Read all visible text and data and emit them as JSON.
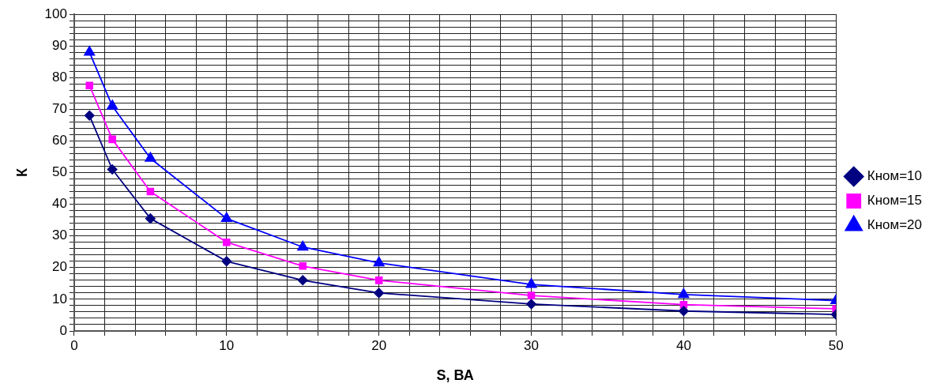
{
  "chart_data": {
    "type": "line",
    "xlabel": "S, ВА",
    "ylabel": "К",
    "x": [
      1,
      2.5,
      5,
      10,
      15,
      20,
      30,
      40,
      50
    ],
    "series": [
      {
        "name": "Кном=10",
        "color": "#000080",
        "marker": "diamond",
        "values": [
          68,
          51,
          35.5,
          22,
          16,
          12,
          8.5,
          6.3,
          5.2
        ]
      },
      {
        "name": "Кном=15",
        "color": "#ff00ff",
        "marker": "square",
        "values": [
          77.5,
          60.5,
          44,
          28,
          20.5,
          16,
          11.2,
          8.3,
          7
        ]
      },
      {
        "name": "Кном=20",
        "color": "#0000ff",
        "marker": "triangle",
        "values": [
          88,
          71,
          54.5,
          35.5,
          26.5,
          21.5,
          14.7,
          11.5,
          9.6
        ]
      }
    ],
    "xlim": [
      0,
      50
    ],
    "ylim": [
      0,
      100
    ],
    "xticks": [
      0,
      {
        "value": 2,
        "label": null
      },
      {
        "value": 4,
        "label": null
      },
      {
        "value": 6,
        "label": null
      },
      {
        "value": 8,
        "label": null
      },
      10,
      {
        "value": 12,
        "label": null
      },
      {
        "value": 14,
        "label": null
      },
      {
        "value": 16,
        "label": null
      },
      {
        "value": 18,
        "label": null
      },
      20,
      {
        "value": 22,
        "label": null
      },
      {
        "value": 24,
        "label": null
      },
      {
        "value": 26,
        "label": null
      },
      {
        "value": 28,
        "label": null
      },
      30,
      {
        "value": 32,
        "label": null
      },
      {
        "value": 34,
        "label": null
      },
      {
        "value": 36,
        "label": null
      },
      {
        "value": 38,
        "label": null
      },
      40,
      {
        "value": 42,
        "label": null
      },
      {
        "value": 44,
        "label": null
      },
      {
        "value": 46,
        "label": null
      },
      {
        "value": 48,
        "label": null
      },
      50
    ],
    "yticks": [
      0,
      {
        "value": 2,
        "label": null
      },
      {
        "value": 4,
        "label": null
      },
      {
        "value": 6,
        "label": null
      },
      {
        "value": 8,
        "label": null
      },
      10,
      {
        "value": 12,
        "label": null
      },
      {
        "value": 14,
        "label": null
      },
      {
        "value": 16,
        "label": null
      },
      {
        "value": 18,
        "label": null
      },
      20,
      {
        "value": 22,
        "label": null
      },
      {
        "value": 24,
        "label": null
      },
      {
        "value": 26,
        "label": null
      },
      {
        "value": 28,
        "label": null
      },
      30,
      {
        "value": 32,
        "label": null
      },
      {
        "value": 34,
        "label": null
      },
      {
        "value": 36,
        "label": null
      },
      {
        "value": 38,
        "label": null
      },
      40,
      {
        "value": 42,
        "label": null
      },
      {
        "value": 44,
        "label": null
      },
      {
        "value": 46,
        "label": null
      },
      {
        "value": 48,
        "label": null
      },
      50,
      {
        "value": 52,
        "label": null
      },
      {
        "value": 54,
        "label": null
      },
      {
        "value": 56,
        "label": null
      },
      {
        "value": 58,
        "label": null
      },
      60,
      {
        "value": 62,
        "label": null
      },
      {
        "value": 64,
        "label": null
      },
      {
        "value": 66,
        "label": null
      },
      {
        "value": 68,
        "label": null
      },
      70,
      {
        "value": 72,
        "label": null
      },
      {
        "value": 74,
        "label": null
      },
      {
        "value": 76,
        "label": null
      },
      {
        "value": 78,
        "label": null
      },
      80,
      {
        "value": 82,
        "label": null
      },
      {
        "value": 84,
        "label": null
      },
      {
        "value": 86,
        "label": null
      },
      {
        "value": 88,
        "label": null
      },
      90,
      {
        "value": 92,
        "label": null
      },
      {
        "value": 94,
        "label": null
      },
      {
        "value": 96,
        "label": null
      },
      {
        "value": 98,
        "label": null
      },
      100
    ],
    "grid": true,
    "legend": "right",
    "line_style": "solid"
  }
}
